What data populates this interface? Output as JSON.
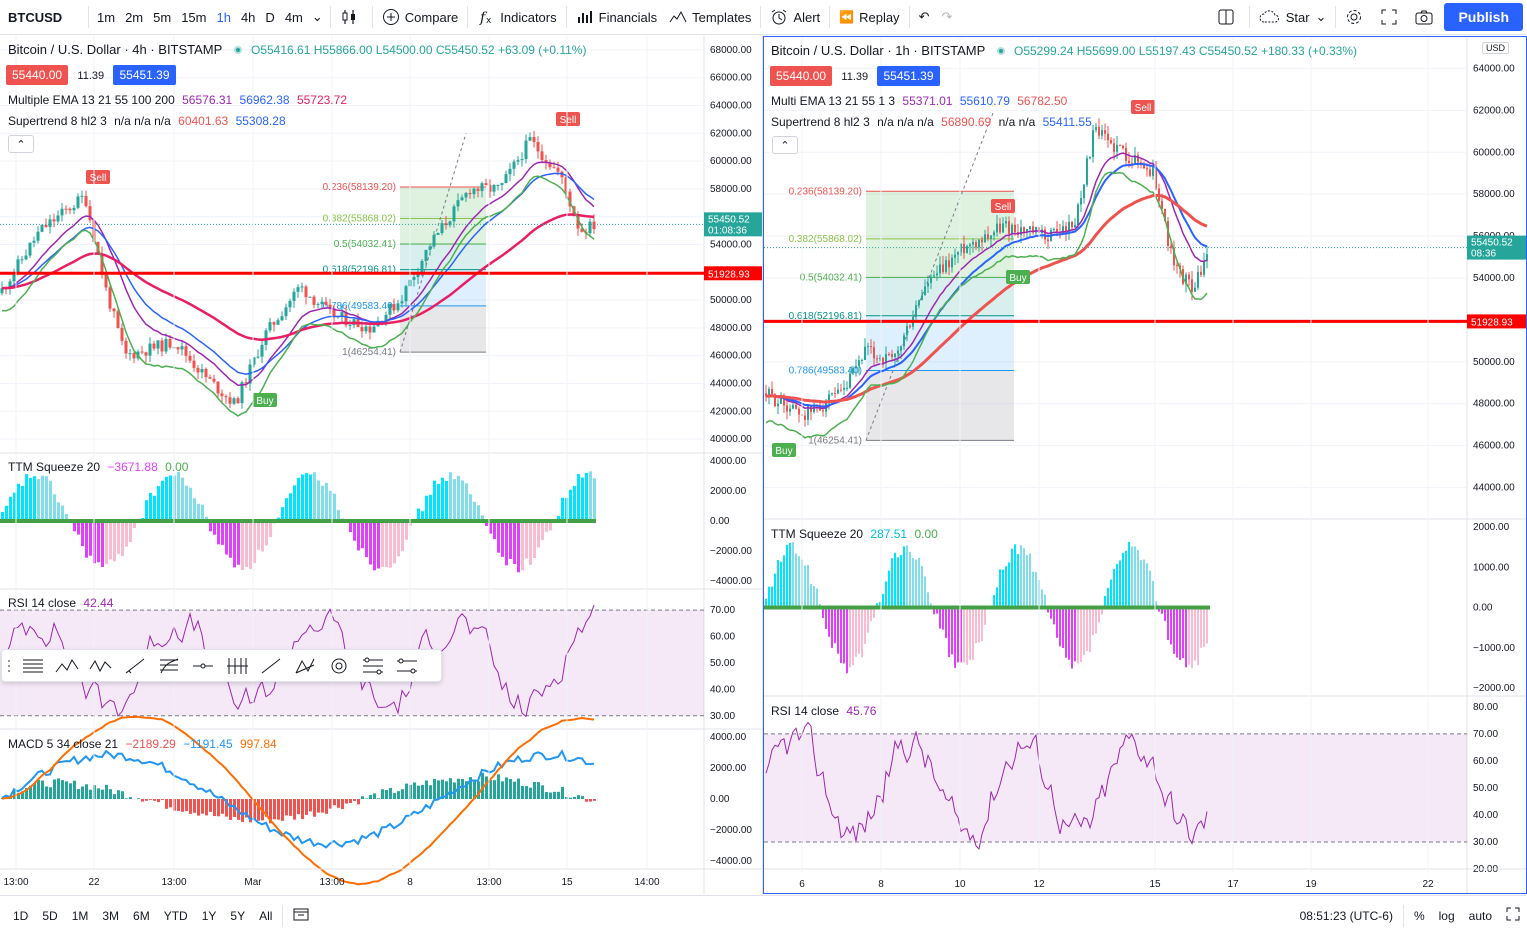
{
  "toolbar": {
    "symbol": "BTCUSD",
    "intervals": [
      "1m",
      "2m",
      "5m",
      "15m",
      "1h",
      "4h",
      "D",
      "4m"
    ],
    "active_interval": "1h",
    "compare": "Compare",
    "indicators": "Indicators",
    "financials": "Financials",
    "templates": "Templates",
    "alert": "Alert",
    "replay": "Replay",
    "star": "Star",
    "publish": "Publish"
  },
  "left": {
    "title": "Bitcoin / U.S. Dollar · 4h · BITSTAMP",
    "ohlc": {
      "o": "O55416.61",
      "h": "H55866.00",
      "l": "L54500.00",
      "c": "C55450.52",
      "chg": "+63.09 (+0.11%)"
    },
    "bid": "55440.00",
    "spread": "11.39",
    "ask": "55451.39",
    "ema_label": "Multiple EMA 13 21 55 100 200",
    "ema_vals": [
      "56576.31",
      "56962.38",
      "55723.72"
    ],
    "st_label": "Supertrend 8 hl2 3",
    "st_na": "n/a n/a n/a",
    "st_vals": [
      "60401.63",
      "55308.28"
    ],
    "price_ticks": [
      "68000.00",
      "66000.00",
      "64000.00",
      "62000.00",
      "60000.00",
      "58000.00",
      "56000.00",
      "54000.00",
      "52000.00",
      "50000.00",
      "48000.00",
      "46000.00",
      "44000.00",
      "42000.00",
      "40000.00"
    ],
    "last_price": "55450.52",
    "last_time": "01:08:36",
    "line_price": "51928.93",
    "ttm_label": "TTM Squeeze 20",
    "ttm_vals": [
      "−3671.88",
      "0.00"
    ],
    "ttm_ticks": [
      "4000.00",
      "2000.00",
      "0.00",
      "−2000.00",
      "−4000.00"
    ],
    "rsi_label": "RSI 14 close",
    "rsi_val": "42.44",
    "rsi_ticks": [
      "70.00",
      "60.00",
      "50.00",
      "40.00",
      "30.00"
    ],
    "macd_label": "MACD 5 34 close 21",
    "macd_vals": [
      "−2189.29",
      "−1191.45",
      "997.84"
    ],
    "macd_ticks": [
      "4000.00",
      "2000.00",
      "0.00",
      "−2000.00",
      "−4000.00"
    ],
    "time_ticks": [
      "13:00",
      "22",
      "13:00",
      "Mar",
      "13:00",
      "8",
      "13:00",
      "15",
      "14:00"
    ],
    "fib": [
      "0.236(58139.20)",
      "0.382(55868.02)",
      "0.5(54032.41)",
      "0.618(52196.81)",
      "0.786(49583.40)",
      "1(46254.41)"
    ],
    "sell": "Sell",
    "buy": "Buy"
  },
  "right": {
    "title": "Bitcoin / U.S. Dollar · 1h · BITSTAMP",
    "ohlc": {
      "o": "O55299.24",
      "h": "H55699.00",
      "l": "L55197.43",
      "c": "C55450.52",
      "chg": "+180.33 (+0.33%)"
    },
    "bid": "55440.00",
    "spread": "11.39",
    "ask": "55451.39",
    "ema_label": "Multi EMA 13 21 55 1 3",
    "ema_vals": [
      "55371.01",
      "55610.79",
      "56782.50"
    ],
    "st_label": "Supertrend 8 hl2 3",
    "st_na": "n/a n/a n/a",
    "st_vals": [
      "56890.69",
      "n/a n/a",
      "55411.55"
    ],
    "currency": "USD",
    "price_ticks": [
      "64000.00",
      "62000.00",
      "60000.00",
      "58000.00",
      "56000.00",
      "54000.00",
      "52000.00",
      "50000.00",
      "48000.00",
      "46000.00",
      "44000.00"
    ],
    "last_price": "55450.52",
    "last_time": "08:36",
    "line_price": "51928.93",
    "ttm_label": "TTM Squeeze 20",
    "ttm_vals": [
      "287.51",
      "0.00"
    ],
    "ttm_ticks": [
      "2000.00",
      "1000.00",
      "0.00",
      "−1000.00",
      "−2000.00"
    ],
    "rsi_label": "RSI 14 close",
    "rsi_val": "45.76",
    "rsi_ticks": [
      "80.00",
      "70.00",
      "60.00",
      "50.00",
      "40.00",
      "30.00",
      "20.00"
    ],
    "time_ticks": [
      "6",
      "8",
      "10",
      "12",
      "15",
      "17",
      "19",
      "22"
    ],
    "fib": [
      "0.236(58139.20)",
      "0.382(55868.02)",
      "0.5(54032.41)",
      "0.618(52196.81)",
      "0.786(49583.40)",
      "1(46254.41)"
    ],
    "sell": "Sell",
    "buy": "Buy"
  },
  "bottom": {
    "ranges": [
      "1D",
      "5D",
      "1M",
      "3M",
      "6M",
      "YTD",
      "1Y",
      "5Y",
      "All"
    ],
    "clock": "08:51:23 (UTC-6)",
    "pct": "%",
    "log": "log",
    "auto": "auto"
  }
}
